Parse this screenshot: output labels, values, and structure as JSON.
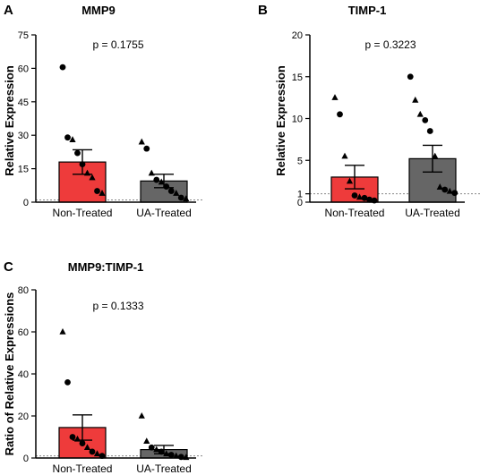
{
  "chart_data": [
    {
      "type": "bar",
      "panel": "A",
      "title": "MMP9",
      "annotation": "p = 0.1755",
      "ylabel": "Relative Expression",
      "xlabel": "",
      "categories": [
        "Non-Treated",
        "UA-Treated"
      ],
      "values": [
        18.0,
        9.5
      ],
      "error_sem": [
        5.5,
        3.0
      ],
      "bar_colors": [
        "#ee3b3b",
        "#666666"
      ],
      "ylim": [
        0,
        75
      ],
      "yticks": [
        0,
        15,
        30,
        45,
        60,
        75
      ],
      "ytick_labels": [
        "0",
        "15",
        "30",
        "45",
        "60",
        "75"
      ],
      "reference_line": 1,
      "points": [
        [
          {
            "shape": "circle",
            "value": 60.5
          },
          {
            "shape": "circle",
            "value": 29
          },
          {
            "shape": "triangle",
            "value": 28
          },
          {
            "shape": "circle",
            "value": 22
          },
          {
            "shape": "circle",
            "value": 17
          },
          {
            "shape": "triangle",
            "value": 13
          },
          {
            "shape": "triangle",
            "value": 11
          },
          {
            "shape": "circle",
            "value": 5
          },
          {
            "shape": "triangle",
            "value": 4
          }
        ],
        [
          {
            "shape": "triangle",
            "value": 27
          },
          {
            "shape": "circle",
            "value": 24
          },
          {
            "shape": "triangle",
            "value": 13
          },
          {
            "shape": "circle",
            "value": 10
          },
          {
            "shape": "triangle",
            "value": 9
          },
          {
            "shape": "circle",
            "value": 7
          },
          {
            "shape": "circle",
            "value": 5
          },
          {
            "shape": "triangle",
            "value": 4
          },
          {
            "shape": "circle",
            "value": 2
          },
          {
            "shape": "triangle",
            "value": 1.5
          }
        ]
      ]
    },
    {
      "type": "bar",
      "panel": "B",
      "title": "TIMP-1",
      "annotation": "p = 0.3223",
      "ylabel": "Relative Expression",
      "xlabel": "",
      "categories": [
        "Non-Treated",
        "UA-Treated"
      ],
      "values": [
        3.0,
        5.2
      ],
      "error_sem": [
        1.4,
        1.6
      ],
      "bar_colors": [
        "#ee3b3b",
        "#666666"
      ],
      "ylim": [
        0,
        20
      ],
      "yticks": [
        0,
        1,
        5,
        10,
        15,
        20
      ],
      "ytick_labels": [
        "0",
        "1",
        "5",
        "10",
        "15",
        "20"
      ],
      "reference_line": 1,
      "points": [
        [
          {
            "shape": "triangle",
            "value": 12.5
          },
          {
            "shape": "circle",
            "value": 10.5
          },
          {
            "shape": "triangle",
            "value": 5.5
          },
          {
            "shape": "triangle",
            "value": 2.5
          },
          {
            "shape": "circle",
            "value": 0.8
          },
          {
            "shape": "triangle",
            "value": 0.6
          },
          {
            "shape": "circle",
            "value": 0.5
          },
          {
            "shape": "circle",
            "value": 0.3
          },
          {
            "shape": "circle",
            "value": 0.2
          }
        ],
        [
          {
            "shape": "circle",
            "value": 15
          },
          {
            "shape": "triangle",
            "value": 12.2
          },
          {
            "shape": "triangle",
            "value": 10.5
          },
          {
            "shape": "circle",
            "value": 9.8
          },
          {
            "shape": "circle",
            "value": 8.5
          },
          {
            "shape": "triangle",
            "value": 5.5
          },
          {
            "shape": "triangle",
            "value": 1.8
          },
          {
            "shape": "circle",
            "value": 1.5
          },
          {
            "shape": "triangle",
            "value": 1.3
          },
          {
            "shape": "circle",
            "value": 1.1
          }
        ]
      ]
    },
    {
      "type": "bar",
      "panel": "C",
      "title": "MMP9:TIMP-1",
      "annotation": "p = 0.1333",
      "ylabel": "Ratio of Relative Expressions",
      "xlabel": "",
      "categories": [
        "Non-Treated",
        "UA-Treated"
      ],
      "values": [
        14.5,
        4.0
      ],
      "error_sem": [
        6.0,
        2.0
      ],
      "bar_colors": [
        "#ee3b3b",
        "#666666"
      ],
      "ylim": [
        0,
        80
      ],
      "yticks": [
        0,
        20,
        40,
        60,
        80
      ],
      "ytick_labels": [
        "0",
        "20",
        "40",
        "60",
        "80"
      ],
      "reference_line": 1,
      "points": [
        [
          {
            "shape": "triangle",
            "value": 60
          },
          {
            "shape": "circle",
            "value": 36
          },
          {
            "shape": "circle",
            "value": 10
          },
          {
            "shape": "triangle",
            "value": 9
          },
          {
            "shape": "circle",
            "value": 7
          },
          {
            "shape": "triangle",
            "value": 5
          },
          {
            "shape": "circle",
            "value": 3
          },
          {
            "shape": "triangle",
            "value": 2
          },
          {
            "shape": "circle",
            "value": 1
          }
        ],
        [
          {
            "shape": "triangle",
            "value": 20
          },
          {
            "shape": "triangle",
            "value": 8
          },
          {
            "shape": "circle",
            "value": 5
          },
          {
            "shape": "triangle",
            "value": 4
          },
          {
            "shape": "circle",
            "value": 3
          },
          {
            "shape": "triangle",
            "value": 2
          },
          {
            "shape": "circle",
            "value": 1.5
          },
          {
            "shape": "triangle",
            "value": 1
          },
          {
            "shape": "circle",
            "value": 0.5
          },
          {
            "shape": "triangle",
            "value": 0.3
          }
        ]
      ]
    }
  ]
}
